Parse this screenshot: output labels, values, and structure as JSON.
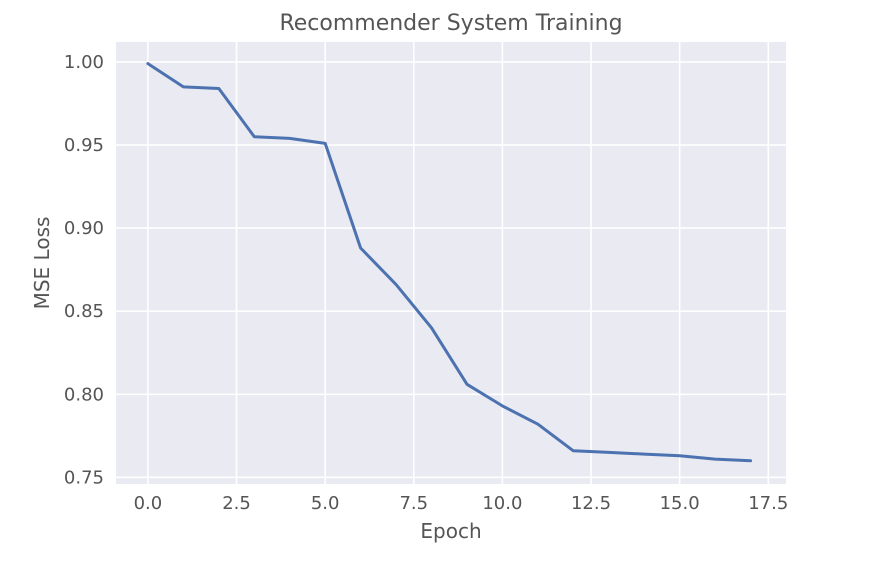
{
  "chart_data": {
    "type": "line",
    "title": "Recommender System Training",
    "xlabel": "Epoch",
    "ylabel": "MSE Loss",
    "xlim": [
      -0.9,
      18.0
    ],
    "ylim": [
      0.746,
      1.012
    ],
    "xticks": [
      0.0,
      2.5,
      5.0,
      7.5,
      10.0,
      12.5,
      15.0,
      17.5
    ],
    "xtick_labels": [
      "0.0",
      "2.5",
      "5.0",
      "7.5",
      "10.0",
      "12.5",
      "15.0",
      "17.5"
    ],
    "yticks": [
      0.75,
      0.8,
      0.85,
      0.9,
      0.95,
      1.0
    ],
    "ytick_labels": [
      "0.75",
      "0.80",
      "0.85",
      "0.90",
      "0.95",
      "1.00"
    ],
    "grid": true,
    "style": "seaborn-darkgrid",
    "colors": {
      "background": "#eaeaf2",
      "grid": "#ffffff",
      "line": "#4c72b0",
      "text": "#555555"
    },
    "series": [
      {
        "x": [
          0,
          1,
          2,
          3,
          4,
          5,
          6,
          7,
          8,
          9,
          10,
          11,
          12,
          13,
          14,
          15,
          16,
          17
        ],
        "values": [
          0.999,
          0.985,
          0.984,
          0.955,
          0.954,
          0.951,
          0.888,
          0.866,
          0.84,
          0.806,
          0.793,
          0.782,
          0.766,
          0.765,
          0.764,
          0.763,
          0.761,
          0.76
        ]
      }
    ]
  }
}
